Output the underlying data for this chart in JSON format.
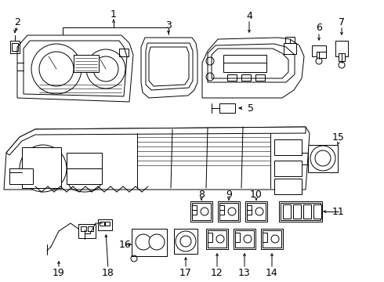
{
  "background_color": "#ffffff",
  "line_color": "#000000",
  "figsize": [
    4.9,
    3.6
  ],
  "dpi": 100,
  "xlim": [
    0,
    490
  ],
  "ylim": [
    0,
    360
  ]
}
